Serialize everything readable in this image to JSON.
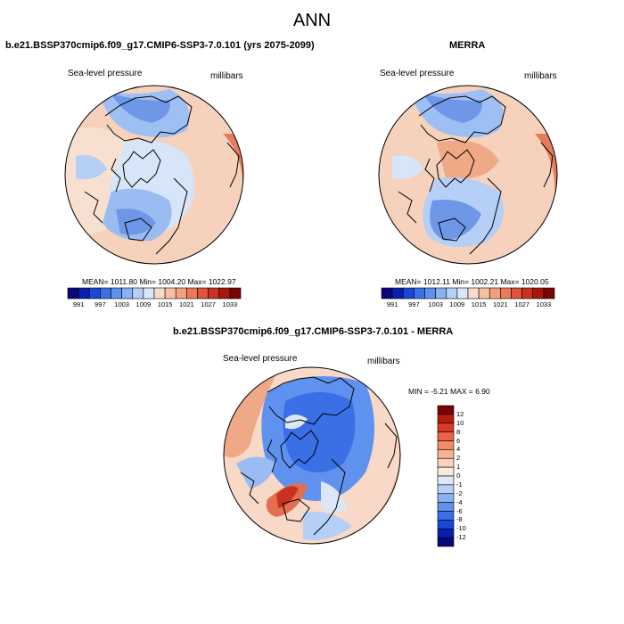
{
  "title": "ANN",
  "panels": [
    {
      "title": "b.e21.BSSP370cmip6.f09_g17.CMIP6-SSP3-7.0.101 (yrs 2075-2099)",
      "variable": "Sea-level pressure",
      "units": "millibars",
      "stats": "MEAN= 1011.80  Min= 1004.20  Max= 1022.97"
    },
    {
      "title": "MERRA",
      "variable": "Sea-level pressure",
      "units": "millibars",
      "stats": "MEAN= 1012.11  Min= 1002.21  Max= 1020.05"
    },
    {
      "title": "b.e21.BSSP370cmip6.f09_g17.CMIP6-SSP3-7.0.101 - MERRA",
      "variable": "Sea-level pressure",
      "units": "millibars",
      "stats": "MIN =  -5.21 MAX =   6.90"
    }
  ],
  "colorbar_abs": {
    "labels": [
      "991",
      "997",
      "1003",
      "1009",
      "1015",
      "1021",
      "1027",
      "1033"
    ],
    "colors": [
      "#08087a",
      "#0a1fb0",
      "#1b47d6",
      "#3a6fe6",
      "#5f92ee",
      "#8ab2f3",
      "#b5cff6",
      "#dbe7f8",
      "#f8dccb",
      "#f6c0a4",
      "#f2a07d",
      "#ec7a57",
      "#e0533a",
      "#c93220",
      "#a8170c",
      "#7a0303"
    ]
  },
  "colorbar_diff": {
    "labels": [
      "12",
      "10",
      "8",
      "6",
      "4",
      "2",
      "1",
      "0",
      "-1",
      "-2",
      "-4",
      "-6",
      "-8",
      "-10",
      "-12"
    ],
    "colors": [
      "#7a0303",
      "#b51c10",
      "#d83b24",
      "#ea6443",
      "#f28b68",
      "#f6b291",
      "#f9d4bd",
      "#fbe9dc",
      "#dde8f8",
      "#b5cff6",
      "#8ab2f3",
      "#5f92ee",
      "#3a6fe6",
      "#1b47d6",
      "#0a1fb0",
      "#08087a"
    ]
  },
  "legend_colors": {
    "deep_blue": "#6f97e8",
    "mid_blue": "#9bbcf2",
    "light_blue": "#d6e5f7",
    "light_red": "#f8d8c6",
    "mid_red": "#f0a987",
    "dark_red": "#e27050"
  }
}
